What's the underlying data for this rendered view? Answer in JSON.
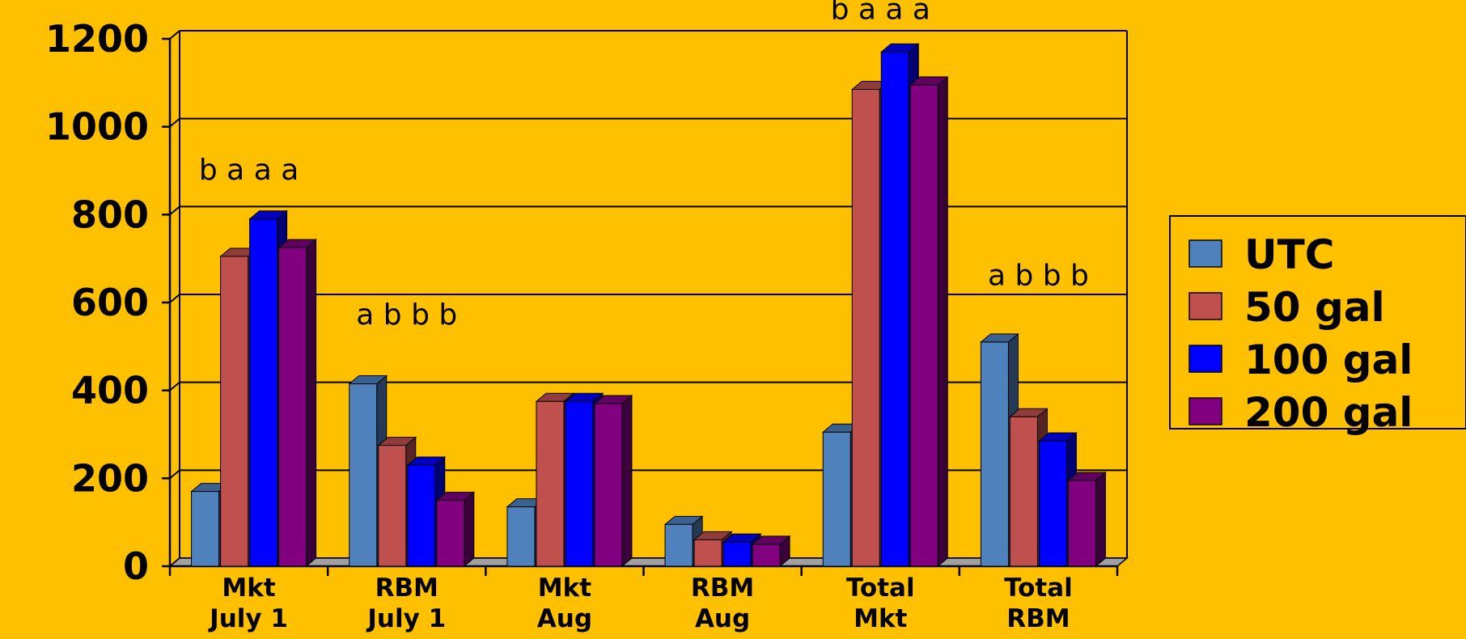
{
  "chart_data": {
    "type": "bar",
    "style": "3d-clustered-column",
    "background_color": "#FFC000",
    "grid": true,
    "legend_position": "right",
    "ylim": [
      0,
      1200
    ],
    "yticks": [
      0,
      200,
      400,
      600,
      800,
      1000,
      1200
    ],
    "categories": [
      [
        "Mkt",
        "July 1"
      ],
      [
        "RBM",
        "July 1"
      ],
      [
        "Mkt",
        "Aug"
      ],
      [
        "RBM",
        "Aug"
      ],
      [
        "Total",
        "Mkt"
      ],
      [
        "Total",
        "RBM"
      ]
    ],
    "series": [
      {
        "name": "UTC",
        "color": "#4F81BD",
        "values": [
          170,
          415,
          135,
          95,
          305,
          510
        ]
      },
      {
        "name": "50 gal",
        "color": "#C0504D",
        "values": [
          705,
          275,
          375,
          60,
          1085,
          340
        ]
      },
      {
        "name": "100 gal",
        "color": "#0000FF",
        "values": [
          790,
          230,
          375,
          55,
          1170,
          285
        ]
      },
      {
        "name": "200 gal",
        "color": "#800080",
        "values": [
          725,
          150,
          370,
          50,
          1095,
          195
        ]
      }
    ],
    "annotations": [
      {
        "category_index": 0,
        "y": 880,
        "text": "b a a a"
      },
      {
        "category_index": 1,
        "y": 550,
        "text": "a  b b b"
      },
      {
        "category_index": 4,
        "y": 1245,
        "text": "b a a a"
      },
      {
        "category_index": 5,
        "y": 640,
        "text": "a  b b b"
      }
    ]
  }
}
